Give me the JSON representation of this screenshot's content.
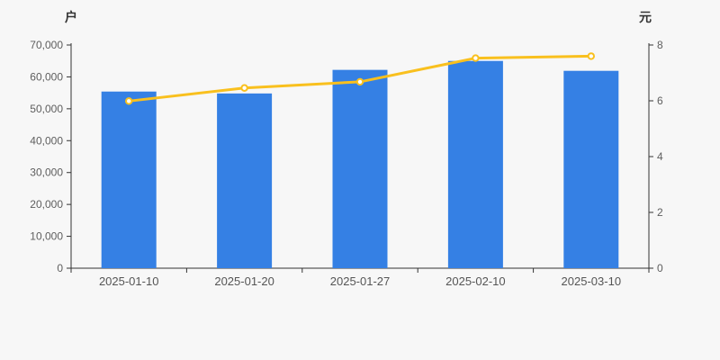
{
  "colors": {
    "background": "#f7f7f7",
    "axis_line": "#333333",
    "tick_text": "#5e5e5e",
    "bar": "#3580e4",
    "line": "#f9c01e",
    "marker_fill": "#ffffff"
  },
  "chart_data": {
    "type": "bar+line",
    "categories": [
      "2025-01-10",
      "2025-01-20",
      "2025-01-27",
      "2025-02-10",
      "2025-03-10"
    ],
    "series": [
      {
        "name": "bar-series",
        "type": "bar",
        "y_axis": "left",
        "color": "#3580e4",
        "values": [
          55400,
          54800,
          62200,
          65000,
          61900
        ]
      },
      {
        "name": "line-series",
        "type": "line",
        "y_axis": "right",
        "color": "#f9c01e",
        "marker_fill": "#ffffff",
        "values": [
          5.99,
          6.46,
          6.68,
          7.53,
          7.6
        ]
      }
    ],
    "left_axis": {
      "title": "户",
      "min": 0,
      "max": 70000,
      "tick_step": 10000,
      "tick_labels": [
        "0",
        "10,000",
        "20,000",
        "30,000",
        "40,000",
        "50,000",
        "60,000",
        "70,000"
      ]
    },
    "right_axis": {
      "title": "元",
      "min": 0,
      "max": 8,
      "tick_step": 2,
      "tick_labels": [
        "0",
        "2",
        "4",
        "6",
        "8"
      ]
    },
    "legend": "none",
    "grid": "off"
  }
}
